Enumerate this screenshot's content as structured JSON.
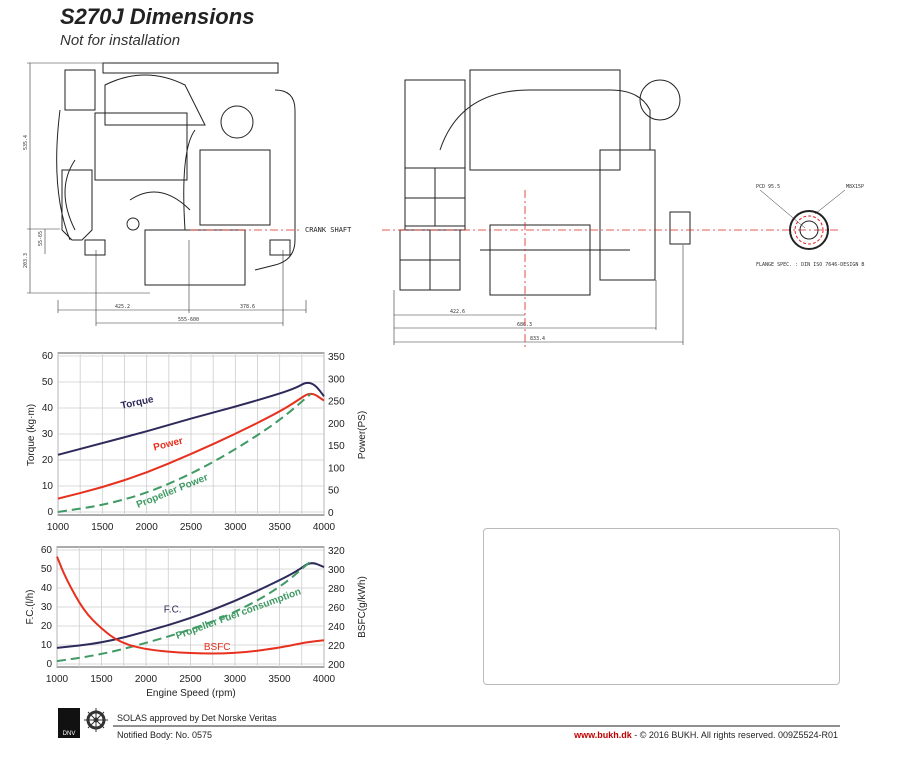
{
  "header": {
    "title": "S270J Dimensions",
    "subtitle": "Not for installation"
  },
  "drawings": {
    "front_dims": [
      "535.4",
      "203.3",
      "55-65",
      "425.2",
      "378.6",
      "555-600"
    ],
    "side_dims": [
      "422.6",
      "686.3",
      "833.4"
    ],
    "crank_label": "CRANK SHAFT",
    "flange_labels": [
      "PCD 95.5",
      "M8X15P"
    ],
    "flange_spec": "FLANGE SPEC. : DIN ISO 7646-DESIGN B",
    "colors": {
      "centerline": "#e02020",
      "lines": "#222222"
    }
  },
  "chart_data": [
    {
      "type": "line",
      "xlabel": "",
      "ylabel": "Torque (kg·m)",
      "y2label": "Power(PS)",
      "xlim": [
        1000,
        4000
      ],
      "ylim": [
        0,
        60
      ],
      "y2lim": [
        0,
        350
      ],
      "xticks": [
        "1000",
        "1500",
        "2000",
        "2500",
        "3000",
        "3500",
        "4000"
      ],
      "yticks": [
        "0",
        "10",
        "20",
        "30",
        "40",
        "50",
        "60"
      ],
      "y2ticks": [
        "0",
        "50",
        "100",
        "150",
        "200",
        "250",
        "300",
        "350"
      ],
      "grid": true,
      "series": [
        {
          "name": "Torque",
          "axis": "left",
          "color": "#2e2a5a",
          "dash": false,
          "x": [
            1000,
            1500,
            2000,
            2500,
            3000,
            3500,
            3700,
            3800,
            3900,
            4000
          ],
          "y": [
            22,
            26.5,
            31,
            36,
            40.5,
            45.5,
            48,
            50,
            49,
            44.5
          ]
        },
        {
          "name": "Power",
          "axis": "right",
          "color": "#e8301e",
          "dash": false,
          "x": [
            1000,
            1500,
            2000,
            2500,
            3000,
            3500,
            3700,
            3850,
            4000
          ],
          "y": [
            30,
            55,
            88,
            130,
            175,
            225,
            250,
            270,
            250
          ]
        },
        {
          "name": "Propeller Power",
          "axis": "right",
          "color": "#3f9a64",
          "dash": true,
          "x": [
            1000,
            1500,
            2000,
            2500,
            3000,
            3500,
            3850
          ],
          "y": [
            0,
            15,
            42,
            85,
            140,
            205,
            265
          ]
        }
      ]
    },
    {
      "type": "line",
      "xlabel": "Engine Speed (rpm)",
      "ylabel": "F.C.(l/h)",
      "y2label": "BSFC(g/kWh)",
      "xlim": [
        1000,
        4000
      ],
      "ylim": [
        0,
        60
      ],
      "y2lim": [
        200,
        320
      ],
      "xticks": [
        "1000",
        "1500",
        "2000",
        "2500",
        "3000",
        "3500",
        "4000"
      ],
      "yticks": [
        "0",
        "10",
        "20",
        "30",
        "40",
        "50",
        "60"
      ],
      "y2ticks": [
        "200",
        "220",
        "240",
        "260",
        "280",
        "300",
        "320"
      ],
      "grid": true,
      "series": [
        {
          "name": "F.C.",
          "axis": "left",
          "color": "#2e2a5a",
          "dash": false,
          "x": [
            1000,
            1500,
            2000,
            2500,
            3000,
            3500,
            3700,
            3850,
            4000
          ],
          "y": [
            8.5,
            11,
            17,
            24,
            33,
            44,
            49,
            54,
            51
          ]
        },
        {
          "name": "Propeller Fuel consumption",
          "axis": "left",
          "color": "#3f9a64",
          "dash": true,
          "x": [
            1000,
            1500,
            2000,
            2500,
            3000,
            3500,
            3850
          ],
          "y": [
            1.5,
            5,
            11,
            18,
            27,
            40,
            54
          ]
        },
        {
          "name": "BSFC",
          "axis": "right",
          "color": "#e8301e",
          "dash": false,
          "x": [
            1000,
            1100,
            1300,
            1500,
            1700,
            2000,
            2500,
            3000,
            3500,
            3800,
            4000
          ],
          "y": [
            313,
            290,
            256,
            237,
            223,
            215,
            211,
            211,
            217,
            223,
            225
          ]
        }
      ]
    }
  ],
  "footer": {
    "approval": "SOLAS approved by Det Norske Veritas",
    "notified": "Notified Body: No. 0575",
    "website": "www.bukh.dk",
    "copyright": " - © 2016 BUKH. All rights reserved. 009Z5524-R01",
    "logo_text": "DNV"
  }
}
